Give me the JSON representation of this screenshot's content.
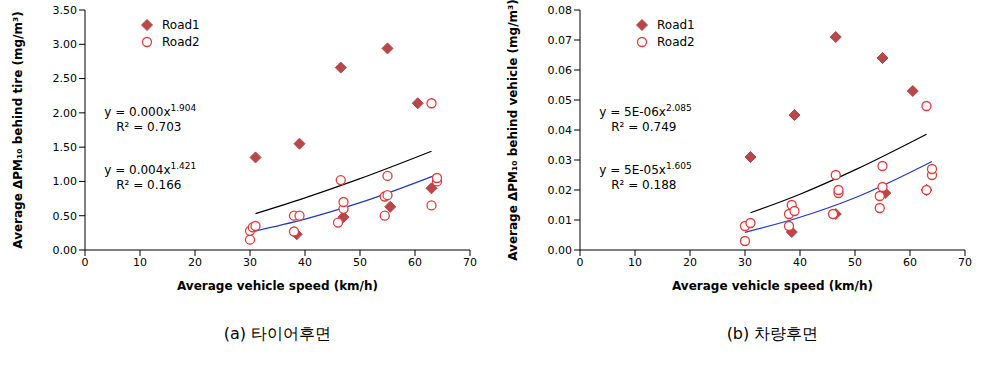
{
  "chart_data": [
    {
      "type": "scatter",
      "subtitle": "(a) 타이어후면",
      "x_label": "Average vehicle speed (km/h)",
      "y_label": "Average ΔPM₁₀ behind tire (mg/m³)",
      "xlim": [
        0,
        70
      ],
      "xticks": [
        0,
        10,
        20,
        30,
        40,
        50,
        60,
        70
      ],
      "ylim": [
        0,
        3.5
      ],
      "yticks": [
        {
          "value": 0,
          "label": "0.00"
        },
        {
          "value": 0.5,
          "label": "0.50"
        },
        {
          "value": 1,
          "label": "1.00"
        },
        {
          "value": 1.5,
          "label": "1.50"
        },
        {
          "value": 2,
          "label": "2.00"
        },
        {
          "value": 2.5,
          "label": "2.50"
        },
        {
          "value": 3,
          "label": "3.00"
        },
        {
          "value": 3.5,
          "label": "3.50"
        }
      ],
      "grid": false,
      "legend": "upper left",
      "series": [
        {
          "name": "Road1",
          "color": "#b8474a",
          "marker": "diamond",
          "x": [
            31,
            38.5,
            39,
            46.5,
            47,
            55,
            55.5,
            60.5,
            63
          ],
          "values": [
            1.35,
            0.23,
            1.55,
            2.66,
            0.48,
            2.94,
            0.63,
            2.14,
            0.9
          ]
        },
        {
          "name": "Road2",
          "color": "#e03c3c",
          "marker": "circle_open",
          "x": [
            30,
            30,
            30.5,
            31,
            38,
            38,
            39,
            46,
            46.5,
            47,
            47,
            54.5,
            54.5,
            55,
            55,
            63,
            63,
            64,
            64
          ],
          "values": [
            0.15,
            0.28,
            0.33,
            0.35,
            0.27,
            0.5,
            0.5,
            0.4,
            1.02,
            0.6,
            0.7,
            0.5,
            0.78,
            1.08,
            0.8,
            0.65,
            2.14,
            1.0,
            1.05
          ]
        }
      ],
      "trendlines": [
        {
          "type": "line",
          "equation": "y = 0.004x",
          "exponent": "1.421",
          "r_squared": "R² = 0.166",
          "color": "#000000",
          "x": [
            31,
            40,
            50,
            63
          ],
          "values": [
            0.53,
            0.76,
            1.04,
            1.44
          ]
        },
        {
          "type": "line",
          "equation": "y = 0.000x",
          "exponent": "1.904",
          "r_squared": "R² = 0.703",
          "color": "#2038c8",
          "x": [
            30,
            40,
            50,
            64
          ],
          "values": [
            0.26,
            0.45,
            0.69,
            1.1
          ]
        }
      ]
    },
    {
      "type": "scatter",
      "subtitle": "(b) 차량후면",
      "x_label": "Average vehicle speed (km/h)",
      "y_label": "Average ΔPM₁₀ behind vehicle (mg/m³)",
      "xlim": [
        0,
        70
      ],
      "xticks": [
        0,
        10,
        20,
        30,
        40,
        50,
        60,
        70
      ],
      "ylim": [
        0,
        0.08
      ],
      "yticks": [
        {
          "value": 0,
          "label": "0.00"
        },
        {
          "value": 0.01,
          "label": "0.01"
        },
        {
          "value": 0.02,
          "label": "0.02"
        },
        {
          "value": 0.03,
          "label": "0.03"
        },
        {
          "value": 0.04,
          "label": "0.04"
        },
        {
          "value": 0.05,
          "label": "0.05"
        },
        {
          "value": 0.06,
          "label": "0.06"
        },
        {
          "value": 0.07,
          "label": "0.07"
        },
        {
          "value": 0.08,
          "label": "0.08"
        }
      ],
      "grid": false,
      "legend": "upper left",
      "series": [
        {
          "name": "Road1",
          "color": "#b8474a",
          "marker": "diamond",
          "x": [
            31,
            38.5,
            39,
            46.5,
            46.5,
            55,
            55.5,
            60.5,
            63
          ],
          "values": [
            0.031,
            0.006,
            0.045,
            0.071,
            0.012,
            0.064,
            0.019,
            0.053,
            0.02
          ]
        },
        {
          "name": "Road2",
          "color": "#e03c3c",
          "marker": "circle_open",
          "x": [
            30,
            30,
            31,
            38,
            38,
            38.5,
            39,
            46,
            46.5,
            47,
            47,
            54.5,
            54.5,
            55,
            55,
            63,
            63,
            64,
            64
          ],
          "values": [
            0.003,
            0.008,
            0.009,
            0.008,
            0.012,
            0.015,
            0.013,
            0.012,
            0.025,
            0.019,
            0.02,
            0.014,
            0.018,
            0.028,
            0.021,
            0.02,
            0.048,
            0.025,
            0.027
          ]
        }
      ],
      "trendlines": [
        {
          "type": "line",
          "equation": "y = 5E-05x",
          "exponent": "1.605",
          "r_squared": "R² = 0.188",
          "color": "#000000",
          "x": [
            31,
            40,
            50,
            63
          ],
          "values": [
            0.0124,
            0.0186,
            0.0267,
            0.0386
          ]
        },
        {
          "type": "line",
          "equation": "y = 5E-06x",
          "exponent": "2.085",
          "r_squared": "R² = 0.749",
          "color": "#2038c8",
          "x": [
            30,
            40,
            50,
            64
          ],
          "values": [
            0.0059,
            0.0109,
            0.0174,
            0.0295
          ]
        }
      ]
    }
  ]
}
